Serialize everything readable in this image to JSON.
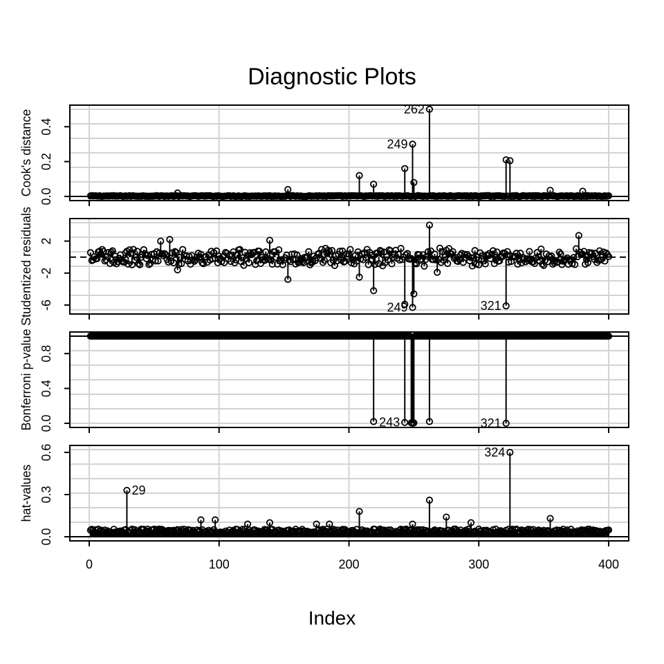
{
  "chart_data": {
    "type": "scatter",
    "title": "Diagnostic Plots",
    "xlabel": "Index",
    "xlim": [
      0,
      400
    ],
    "x_ticks": [
      0,
      100,
      200,
      300,
      400
    ],
    "n_points": 400,
    "grid": true,
    "panels": [
      {
        "id": "cooks",
        "ylabel": "Cook's distance",
        "ylim": [
          0,
          0.5
        ],
        "y_ticks": [
          "0.0",
          "0.2",
          "0.4"
        ],
        "y_tick_values": [
          0,
          0.2,
          0.4
        ],
        "baseline": 0,
        "baseline_dashed": false,
        "background": 0.005,
        "highlights": [
          {
            "x": 208,
            "y": 0.12
          },
          {
            "x": 219,
            "y": 0.07
          },
          {
            "x": 243,
            "y": 0.16
          },
          {
            "x": 249,
            "y": 0.3,
            "label": "249"
          },
          {
            "x": 250,
            "y": 0.08
          },
          {
            "x": 262,
            "y": 0.5,
            "label": "262"
          },
          {
            "x": 321,
            "y": 0.21
          },
          {
            "x": 324,
            "y": 0.205
          },
          {
            "x": 153,
            "y": 0.04
          },
          {
            "x": 355,
            "y": 0.035
          },
          {
            "x": 380,
            "y": 0.03
          },
          {
            "x": 68,
            "y": 0.02
          }
        ]
      },
      {
        "id": "studentized",
        "ylabel": "Studentized residuals",
        "ylim": [
          -6.6,
          4.3
        ],
        "y_ticks": [
          "-6",
          "-2",
          "2"
        ],
        "y_tick_values": [
          -6,
          -2,
          2
        ],
        "baseline": 0,
        "baseline_dashed": true,
        "background": 0.9,
        "highlights": [
          {
            "x": 262,
            "y": 4.0
          },
          {
            "x": 377,
            "y": 2.7
          },
          {
            "x": 62,
            "y": 2.2
          },
          {
            "x": 55,
            "y": 2.0
          },
          {
            "x": 139,
            "y": 2.1
          },
          {
            "x": 153,
            "y": -2.8
          },
          {
            "x": 208,
            "y": -2.5
          },
          {
            "x": 219,
            "y": -4.2
          },
          {
            "x": 243,
            "y": -5.9
          },
          {
            "x": 249,
            "y": -6.3,
            "label": "249"
          },
          {
            "x": 250,
            "y": -4.6
          },
          {
            "x": 268,
            "y": -1.9
          },
          {
            "x": 68,
            "y": -1.6
          },
          {
            "x": 321,
            "y": -6.1,
            "label": "321"
          }
        ]
      },
      {
        "id": "bonferroni",
        "ylabel": "Bonferroni p-value",
        "ylim": [
          0,
          1
        ],
        "y_ticks": [
          "0.0",
          "0.4",
          "0.8"
        ],
        "y_tick_values": [
          0,
          0.4,
          0.8
        ],
        "baseline": 1,
        "baseline_dashed": false,
        "background": 1.0,
        "highlights": [
          {
            "x": 219,
            "y": 0.02
          },
          {
            "x": 243,
            "y": 0.01,
            "label": "243"
          },
          {
            "x": 248,
            "y": 0.005
          },
          {
            "x": 249,
            "y": 0.0
          },
          {
            "x": 250,
            "y": 0.005
          },
          {
            "x": 262,
            "y": 0.02
          },
          {
            "x": 321,
            "y": 0.0,
            "label": "321"
          }
        ]
      },
      {
        "id": "hat",
        "ylabel": "hat-values",
        "ylim": [
          0,
          0.62
        ],
        "y_ticks": [
          "0.0",
          "0.3",
          "0.6"
        ],
        "y_tick_values": [
          0,
          0.3,
          0.6
        ],
        "baseline": 0,
        "baseline_dashed": false,
        "background": 0.025,
        "highlights": [
          {
            "x": 29,
            "y": 0.33,
            "label": "29"
          },
          {
            "x": 324,
            "y": 0.6,
            "label": "324"
          },
          {
            "x": 262,
            "y": 0.26
          },
          {
            "x": 208,
            "y": 0.18
          },
          {
            "x": 275,
            "y": 0.14
          },
          {
            "x": 86,
            "y": 0.12
          },
          {
            "x": 97,
            "y": 0.12
          },
          {
            "x": 355,
            "y": 0.13
          },
          {
            "x": 139,
            "y": 0.1
          },
          {
            "x": 122,
            "y": 0.09
          },
          {
            "x": 175,
            "y": 0.09
          },
          {
            "x": 185,
            "y": 0.09
          },
          {
            "x": 294,
            "y": 0.1
          },
          {
            "x": 249,
            "y": 0.09
          }
        ]
      }
    ]
  }
}
